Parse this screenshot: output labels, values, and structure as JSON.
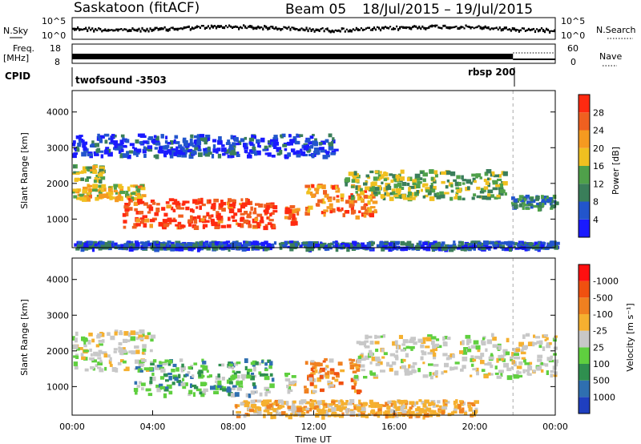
{
  "header": {
    "station": "Saskatoon (fitACF)",
    "beam": "Beam 05",
    "date_range": "18/Jul/2015 – 19/Jul/2015"
  },
  "top_panels": {
    "nsky_label": "N.Sky",
    "nsky_ticks": [
      "10^5",
      "10^0"
    ],
    "nsearch_label": "N.Search",
    "nsearch_ticks": [
      "10^5",
      "10^0"
    ],
    "freq_label_1": "Freq.",
    "freq_label_2": "[MHz]",
    "freq_ticks": [
      "18",
      "8"
    ],
    "nave_label": "Nave",
    "nave_ticks": [
      "60",
      "0"
    ],
    "cpid_label": "CPID",
    "cpid_entries": [
      "twofsound -3503",
      "rbsp 200"
    ]
  },
  "chart_data": [
    {
      "type": "heatmap",
      "name": "power",
      "ylabel": "Slant Range [km]",
      "yticks": [
        "1000",
        "2000",
        "3000",
        "4000"
      ],
      "ylim": [
        200,
        4600
      ],
      "colorbar_label": "Power [dB]",
      "colorbar_ticks": [
        "4",
        "8",
        "12",
        "16",
        "20",
        "24",
        "28"
      ],
      "colorbar_colors": [
        "#1a1aff",
        "#2255cc",
        "#3a7e5a",
        "#4fa04a",
        "#f0c020",
        "#f59a20",
        "#f06020",
        "#ff2a10"
      ],
      "regions": [
        {
          "t0": 0.0,
          "t1": 1.5,
          "r0": 2100,
          "r1": 2550,
          "level": 0.5
        },
        {
          "t0": 0.0,
          "t1": 3.5,
          "r0": 1600,
          "r1": 2000,
          "level": 0.6
        },
        {
          "t0": 2.5,
          "t1": 10.0,
          "r0": 800,
          "r1": 1600,
          "level": 0.9
        },
        {
          "t0": 10.5,
          "t1": 11.2,
          "r0": 900,
          "r1": 1400,
          "level": 0.85
        },
        {
          "t0": 11.5,
          "t1": 15.0,
          "r0": 1100,
          "r1": 2000,
          "level": 0.75
        },
        {
          "t0": 13.5,
          "t1": 21.5,
          "r0": 1600,
          "r1": 2400,
          "level": 0.45
        },
        {
          "t0": 21.8,
          "t1": 24.0,
          "r0": 1300,
          "r1": 1700,
          "level": 0.3
        },
        {
          "t0": 0.0,
          "t1": 24.0,
          "r0": 200,
          "r1": 400,
          "level": 0.2
        },
        {
          "t0": 0.0,
          "t1": 13.0,
          "r0": 2800,
          "r1": 3400,
          "level": 0.15
        }
      ]
    },
    {
      "type": "heatmap",
      "name": "velocity",
      "ylabel": "Slant Range [km]",
      "yticks": [
        "1000",
        "2000",
        "3000",
        "4000"
      ],
      "ylim": [
        200,
        4600
      ],
      "colorbar_label": "Velocity [m s⁻¹]",
      "colorbar_ticks": [
        "1000",
        "500",
        "100",
        "25",
        "-25",
        "-100",
        "-500",
        "-1000"
      ],
      "colorbar_colors": [
        "#1f3fbf",
        "#2f6fb0",
        "#2f8f4f",
        "#5fcf3f",
        "#c8c8c8",
        "#f5b030",
        "#f08020",
        "#f05010",
        "#ff1010"
      ],
      "regions": [
        {
          "t0": 0.0,
          "t1": 4.0,
          "r0": 1500,
          "r1": 2600,
          "level": "grey"
        },
        {
          "t0": 3.0,
          "t1": 10.0,
          "r0": 800,
          "r1": 1800,
          "level": "green"
        },
        {
          "t0": 10.5,
          "t1": 11.0,
          "r0": 900,
          "r1": 1400,
          "level": "grey"
        },
        {
          "t0": 11.5,
          "t1": 14.2,
          "r0": 900,
          "r1": 1800,
          "level": "orange"
        },
        {
          "t0": 14.0,
          "t1": 24.0,
          "r0": 1300,
          "r1": 2500,
          "level": "grey"
        },
        {
          "t0": 8.0,
          "t1": 20.0,
          "r0": 200,
          "r1": 650,
          "level": "yellow"
        }
      ]
    }
  ],
  "x_axis": {
    "label": "Time UT",
    "ticks": [
      "00:00",
      "04:00",
      "08:00",
      "12:00",
      "16:00",
      "20:00",
      "00:00"
    ]
  }
}
